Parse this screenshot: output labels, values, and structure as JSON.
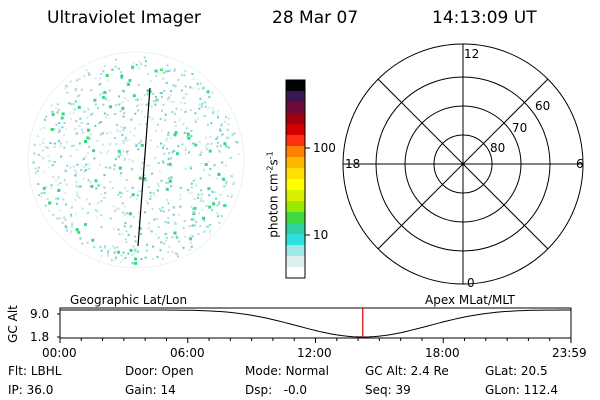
{
  "header": {
    "instrument": "Ultraviolet Imager",
    "date": "28 Mar 07",
    "time": "14:13:09 UT"
  },
  "colorbar": {
    "label": "photon cm-2s-1",
    "ticks": [
      "100",
      "10"
    ],
    "colors": [
      "#000000",
      "#3a1750",
      "#6e0a3a",
      "#a00010",
      "#d00000",
      "#ff3010",
      "#ff8000",
      "#ffb800",
      "#ffe000",
      "#ffff00",
      "#d8f000",
      "#98e800",
      "#40d840",
      "#30d0a0",
      "#30e0e0",
      "#a0e8e8",
      "#e0f0f0",
      "#ffffff"
    ]
  },
  "polar": {
    "labels": {
      "top": "12",
      "bottom": "0",
      "left": "18",
      "right": "6"
    },
    "rings": [
      "60",
      "70",
      "80"
    ]
  },
  "timeline": {
    "left_caption": "Geographic Lat/Lon",
    "right_caption": "Apex MLat/MLT",
    "y_label": "GC Alt",
    "y_ticks": [
      "9.0",
      "1.8"
    ],
    "x_ticks": [
      "00:00",
      "06:00",
      "12:00",
      "18:00",
      "23:59"
    ],
    "current_time_hours": 14.22,
    "marker_color": "#cc0000"
  },
  "footer": {
    "row1": [
      {
        "key": "Flt:",
        "value": "LBHL"
      },
      {
        "key": "Door:",
        "value": "Open"
      },
      {
        "key": "Mode:",
        "value": "Normal"
      },
      {
        "key": "GC Alt:",
        "value": "2.4 Re"
      },
      {
        "key": "GLat:",
        "value": "20.5"
      }
    ],
    "row2": [
      {
        "key": "IP:",
        "value": "36.0"
      },
      {
        "key": "Gain:",
        "value": "14"
      },
      {
        "key": "Dsp:",
        "value": "-0.0"
      },
      {
        "key": "Seq:",
        "value": "39"
      },
      {
        "key": "GLon:",
        "value": "112.4"
      }
    ]
  }
}
